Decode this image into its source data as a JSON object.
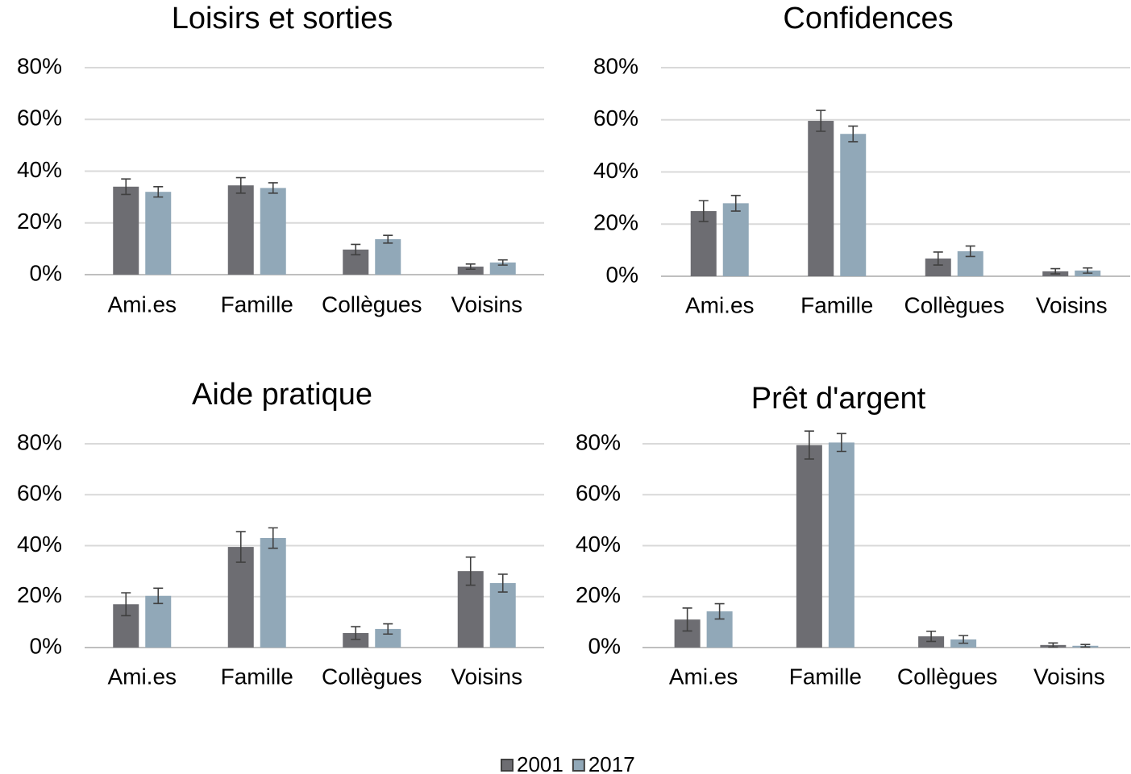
{
  "chart_data": [
    {
      "type": "bar",
      "title": "Loisirs et sorties",
      "categories": [
        "Ami.es",
        "Famille",
        "Collègues",
        "Voisins"
      ],
      "series": [
        {
          "name": "2001",
          "color": "#6d6d72",
          "values": [
            34,
            34.5,
            9.7,
            3.1
          ],
          "errors": [
            3,
            3,
            2,
            1
          ]
        },
        {
          "name": "2017",
          "color": "#91a8b8",
          "values": [
            32,
            33.5,
            13.7,
            4.7
          ],
          "errors": [
            2,
            2,
            1.5,
            1
          ]
        }
      ],
      "ylim": [
        0,
        80
      ],
      "yticks": [
        {
          "value": 0,
          "label": "0%"
        },
        {
          "value": 20,
          "label": "20%"
        },
        {
          "value": 40,
          "label": "40%"
        },
        {
          "value": 60,
          "label": "60%"
        },
        {
          "value": 80,
          "label": "80%"
        }
      ],
      "grid": true
    },
    {
      "type": "bar",
      "title": "Confidences",
      "categories": [
        "Ami.es",
        "Famille",
        "Collègues",
        "Voisins"
      ],
      "series": [
        {
          "name": "2001",
          "color": "#6d6d72",
          "values": [
            25,
            59.6,
            6.8,
            1.9
          ],
          "errors": [
            4,
            4,
            2.5,
            1
          ]
        },
        {
          "name": "2017",
          "color": "#91a8b8",
          "values": [
            28,
            54.6,
            9.6,
            2.2
          ],
          "errors": [
            3,
            3,
            2,
            1
          ]
        }
      ],
      "ylim": [
        0,
        80
      ],
      "yticks": [
        {
          "value": 0,
          "label": "0%"
        },
        {
          "value": 20,
          "label": "20%"
        },
        {
          "value": 40,
          "label": "40%"
        },
        {
          "value": 60,
          "label": "60%"
        },
        {
          "value": 80,
          "label": "80%"
        }
      ],
      "grid": true
    },
    {
      "type": "bar",
      "title": "Aide pratique",
      "categories": [
        "Ami.es",
        "Famille",
        "Collègues",
        "Voisins"
      ],
      "series": [
        {
          "name": "2001",
          "color": "#6d6d72",
          "values": [
            17,
            39.5,
            5.7,
            30
          ],
          "errors": [
            4.5,
            6,
            2.5,
            5.5
          ]
        },
        {
          "name": "2017",
          "color": "#91a8b8",
          "values": [
            20.3,
            43,
            7.3,
            25.3
          ],
          "errors": [
            3,
            4,
            2,
            3.5
          ]
        }
      ],
      "ylim": [
        0,
        80
      ],
      "yticks": [
        {
          "value": 0,
          "label": "0%"
        },
        {
          "value": 20,
          "label": "20%"
        },
        {
          "value": 40,
          "label": "40%"
        },
        {
          "value": 60,
          "label": "60%"
        },
        {
          "value": 80,
          "label": "80%"
        }
      ],
      "grid": true
    },
    {
      "type": "bar",
      "title": "Prêt d'argent",
      "categories": [
        "Ami.es",
        "Famille",
        "Collègues",
        "Voisins"
      ],
      "series": [
        {
          "name": "2001",
          "color": "#6d6d72",
          "values": [
            11,
            79.5,
            4.4,
            1
          ],
          "errors": [
            4.5,
            5.5,
            2,
            0.8
          ]
        },
        {
          "name": "2017",
          "color": "#91a8b8",
          "values": [
            14.2,
            80.5,
            3.2,
            0.7
          ],
          "errors": [
            3,
            3.5,
            1.5,
            0.5
          ]
        }
      ],
      "ylim": [
        0,
        80
      ],
      "yticks": [
        {
          "value": 0,
          "label": "0%"
        },
        {
          "value": 20,
          "label": "20%"
        },
        {
          "value": 40,
          "label": "40%"
        },
        {
          "value": 60,
          "label": "60%"
        },
        {
          "value": 80,
          "label": "80%"
        }
      ],
      "grid": true
    }
  ]
}
